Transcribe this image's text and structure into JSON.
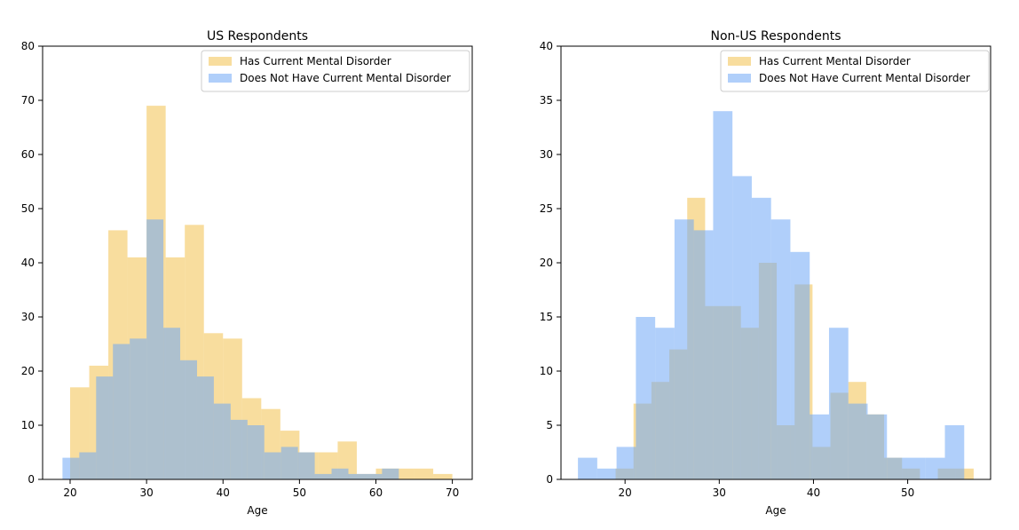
{
  "chart_data": [
    {
      "type": "bar",
      "subtype": "overlaid-histogram",
      "title": "US Respondents",
      "xlabel": "Age",
      "ylabel": "",
      "xlim": [
        16.4,
        72.6
      ],
      "ylim": [
        0,
        80
      ],
      "xticks": [
        20,
        30,
        40,
        50,
        60,
        70
      ],
      "yticks": [
        0,
        10,
        20,
        30,
        40,
        50,
        60,
        70,
        80
      ],
      "legend": {
        "position": "top-right"
      },
      "series": [
        {
          "name": "Has Current Mental Disorder",
          "color": "#f2c14e",
          "opacity": 0.55,
          "bin_edges": [
            20,
            22.5,
            25,
            27.5,
            30,
            32.5,
            35,
            37.5,
            40,
            42.5,
            45,
            47.5,
            50,
            52.5,
            55,
            57.5,
            60,
            62.5,
            65,
            67.5,
            70
          ],
          "values": [
            17,
            21,
            46,
            41,
            69,
            41,
            47,
            27,
            26,
            15,
            13,
            9,
            5,
            5,
            7,
            1,
            2,
            2,
            2,
            1
          ]
        },
        {
          "name": "Does Not Have Current Mental Disorder",
          "color": "#6fa8f5",
          "opacity": 0.55,
          "bin_edges": [
            19,
            21.2,
            23.4,
            25.6,
            27.8,
            30,
            32.2,
            34.4,
            36.6,
            38.8,
            41,
            43.2,
            45.4,
            47.6,
            49.8,
            52,
            54.2,
            56.4,
            58.6,
            60.8,
            63
          ],
          "values": [
            4,
            5,
            19,
            25,
            26,
            48,
            28,
            22,
            19,
            14,
            11,
            10,
            5,
            6,
            5,
            1,
            2,
            1,
            1,
            2
          ]
        }
      ]
    },
    {
      "type": "bar",
      "subtype": "overlaid-histogram",
      "title": "Non-US Respondents",
      "xlabel": "Age",
      "ylabel": "",
      "xlim": [
        13.2,
        58.8
      ],
      "ylim": [
        0,
        40
      ],
      "xticks": [
        20,
        30,
        40,
        50
      ],
      "yticks": [
        0,
        5,
        10,
        15,
        20,
        25,
        30,
        35,
        40
      ],
      "legend": {
        "position": "top-right"
      },
      "series": [
        {
          "name": "Has Current Mental Disorder",
          "color": "#f2c14e",
          "opacity": 0.55,
          "bin_edges": [
            19,
            20.9,
            22.8,
            24.7,
            26.6,
            28.5,
            30.4,
            32.3,
            34.2,
            36.1,
            38,
            39.9,
            41.8,
            43.7,
            45.6,
            47.5,
            49.4,
            51.3,
            53.2,
            55.1,
            57
          ],
          "values": [
            1,
            7,
            9,
            12,
            26,
            16,
            16,
            14,
            20,
            5,
            18,
            3,
            8,
            9,
            6,
            2,
            1,
            0,
            1,
            1
          ]
        },
        {
          "name": "Does Not Have Current Mental Disorder",
          "color": "#6fa8f5",
          "opacity": 0.55,
          "bin_edges": [
            15,
            17.05,
            19.1,
            21.15,
            23.2,
            25.25,
            27.3,
            29.35,
            31.4,
            33.45,
            35.5,
            37.55,
            39.6,
            41.65,
            43.7,
            45.75,
            47.8,
            49.85,
            51.9,
            53.95,
            56
          ],
          "values": [
            2,
            1,
            3,
            15,
            14,
            24,
            23,
            34,
            28,
            26,
            24,
            21,
            6,
            14,
            7,
            6,
            2,
            2,
            2,
            5
          ]
        }
      ]
    }
  ]
}
